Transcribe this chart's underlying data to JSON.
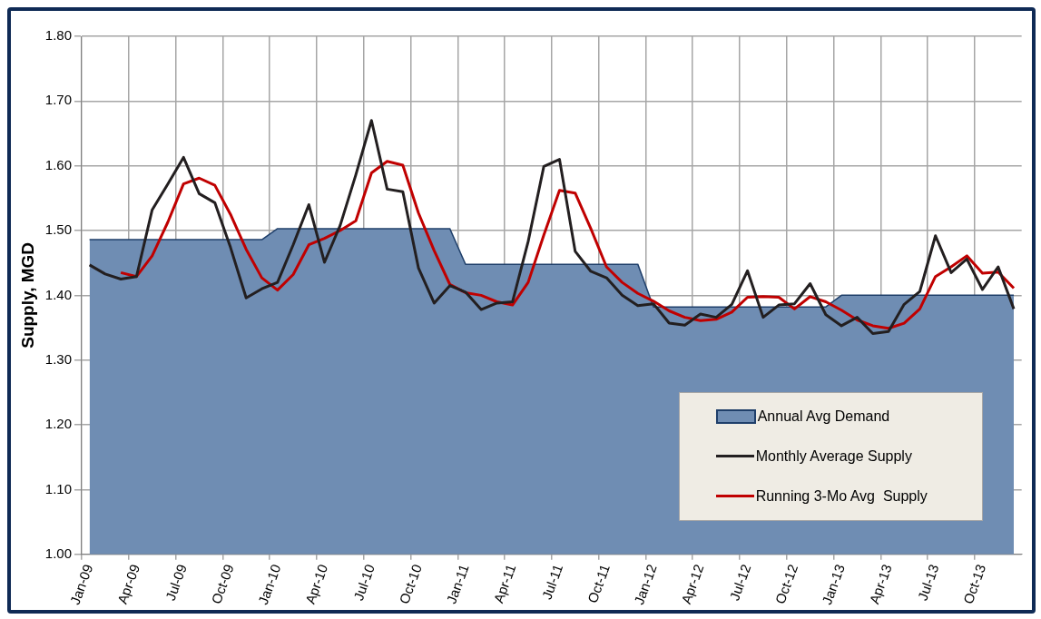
{
  "chart_data": {
    "type": "area",
    "ylabel": "Supply, MGD",
    "categories": [
      "Jan-09",
      null,
      null,
      "Apr-09",
      null,
      null,
      "Jul-09",
      null,
      null,
      "Oct-09",
      null,
      null,
      "Jan-10",
      null,
      null,
      "Apr-10",
      null,
      null,
      "Jul-10",
      null,
      null,
      "Oct-10",
      null,
      null,
      "Jan-11",
      null,
      null,
      "Apr-11",
      null,
      null,
      "Jul-11",
      null,
      null,
      "Oct-11",
      null,
      null,
      "Jan-12",
      null,
      null,
      "Apr-12",
      null,
      null,
      "Jul-12",
      null,
      null,
      "Oct-12",
      null,
      null,
      "Jan-13",
      null,
      null,
      "Apr-13",
      null,
      null,
      "Jul-13",
      null,
      null,
      "Oct-13",
      null,
      null
    ],
    "series": [
      {
        "name": "Annual Avg Demand",
        "color": "#6f8db3",
        "values": [
          1.486,
          1.486,
          1.486,
          1.486,
          1.486,
          1.486,
          1.486,
          1.486,
          1.486,
          1.486,
          1.486,
          1.486,
          1.503,
          1.503,
          1.503,
          1.503,
          1.503,
          1.503,
          1.503,
          1.503,
          1.503,
          1.503,
          1.503,
          1.503,
          1.448,
          1.448,
          1.448,
          1.448,
          1.448,
          1.448,
          1.448,
          1.448,
          1.448,
          1.448,
          1.448,
          1.448,
          1.382,
          1.382,
          1.382,
          1.382,
          1.382,
          1.382,
          1.382,
          1.382,
          1.382,
          1.382,
          1.382,
          1.382,
          1.4,
          1.4,
          1.4,
          1.4,
          1.4,
          1.4,
          1.4,
          1.4,
          1.4,
          1.4,
          1.4,
          1.4
        ]
      },
      {
        "name": "Monthly Average Supply",
        "type": "line",
        "color": "#231f20",
        "values": [
          1.447,
          1.433,
          1.425,
          1.429,
          1.532,
          1.572,
          1.613,
          1.557,
          1.543,
          1.474,
          1.396,
          1.41,
          1.42,
          1.478,
          1.54,
          1.451,
          1.508,
          1.586,
          1.67,
          1.564,
          1.56,
          1.442,
          1.388,
          1.415,
          1.405,
          1.378,
          1.388,
          1.39,
          1.483,
          1.599,
          1.61,
          1.468,
          1.437,
          1.427,
          1.4,
          1.384,
          1.387,
          1.357,
          1.354,
          1.371,
          1.366,
          1.386,
          1.438,
          1.366,
          1.385,
          1.387,
          1.418,
          1.37,
          1.353,
          1.366,
          1.341,
          1.344,
          1.386,
          1.406,
          1.492,
          1.435,
          1.456,
          1.409,
          1.444,
          1.379
        ]
      },
      {
        "name": "Running 3-Mo Avg  Supply",
        "type": "line",
        "color": "#c00000",
        "values": [
          null,
          null,
          1.435,
          1.429,
          1.461,
          1.513,
          1.572,
          1.581,
          1.57,
          1.525,
          1.471,
          1.427,
          1.408,
          1.432,
          1.478,
          1.488,
          1.5,
          1.515,
          1.589,
          1.607,
          1.601,
          1.527,
          1.469,
          1.417,
          1.404,
          1.4,
          1.39,
          1.385,
          1.42,
          1.493,
          1.562,
          1.558,
          1.503,
          1.444,
          1.42,
          1.403,
          1.391,
          1.376,
          1.366,
          1.361,
          1.363,
          1.374,
          1.397,
          1.398,
          1.397,
          1.379,
          1.398,
          1.39,
          1.377,
          1.362,
          1.353,
          1.349,
          1.357,
          1.379,
          1.429,
          1.444,
          1.461,
          1.434,
          1.436,
          1.411
        ]
      }
    ],
    "ylim": [
      1.0,
      1.8
    ],
    "yticks": [
      {
        "value": 1.0,
        "label": "1.00"
      },
      {
        "value": 1.1,
        "label": "1.10"
      },
      {
        "value": 1.2,
        "label": "1.20"
      },
      {
        "value": 1.3,
        "label": "1.30"
      },
      {
        "value": 1.4,
        "label": "1.40"
      },
      {
        "value": 1.5,
        "label": "1.50"
      },
      {
        "value": 1.6,
        "label": "1.60"
      },
      {
        "value": 1.7,
        "label": "1.70"
      },
      {
        "value": 1.8,
        "label": "1.80"
      }
    ],
    "grid": true,
    "legend": "bottom right",
    "marker": "none",
    "line_style": "solid"
  }
}
